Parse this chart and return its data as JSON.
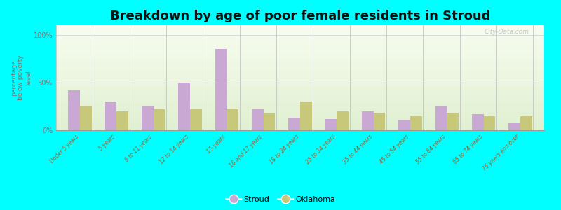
{
  "title": "Breakdown by age of poor female residents in Stroud",
  "categories": [
    "Under 5 years",
    "5 years",
    "6 to 11 years",
    "12 to 14 years",
    "15 years",
    "16 and 17 years",
    "18 to 24 years",
    "25 to 34 years",
    "35 to 44 years",
    "45 to 54 years",
    "55 to 64 years",
    "65 to 74 years",
    "75 years and over"
  ],
  "stroud_values": [
    42,
    30,
    25,
    50,
    85,
    22,
    13,
    12,
    20,
    10,
    25,
    17,
    7
  ],
  "oklahoma_values": [
    25,
    20,
    22,
    22,
    22,
    18,
    30,
    20,
    18,
    15,
    18,
    15,
    15
  ],
  "stroud_color": "#c9a8d4",
  "oklahoma_color": "#c8c87a",
  "background_color": "#00ffff",
  "ylabel": "percentage\nbelow poverty\nlevel",
  "yticks": [
    0,
    50,
    100
  ],
  "ytick_labels": [
    "0%",
    "50%",
    "100%"
  ],
  "title_fontsize": 13,
  "legend_labels": [
    "Stroud",
    "Oklahoma"
  ],
  "watermark": "City-Data.com"
}
